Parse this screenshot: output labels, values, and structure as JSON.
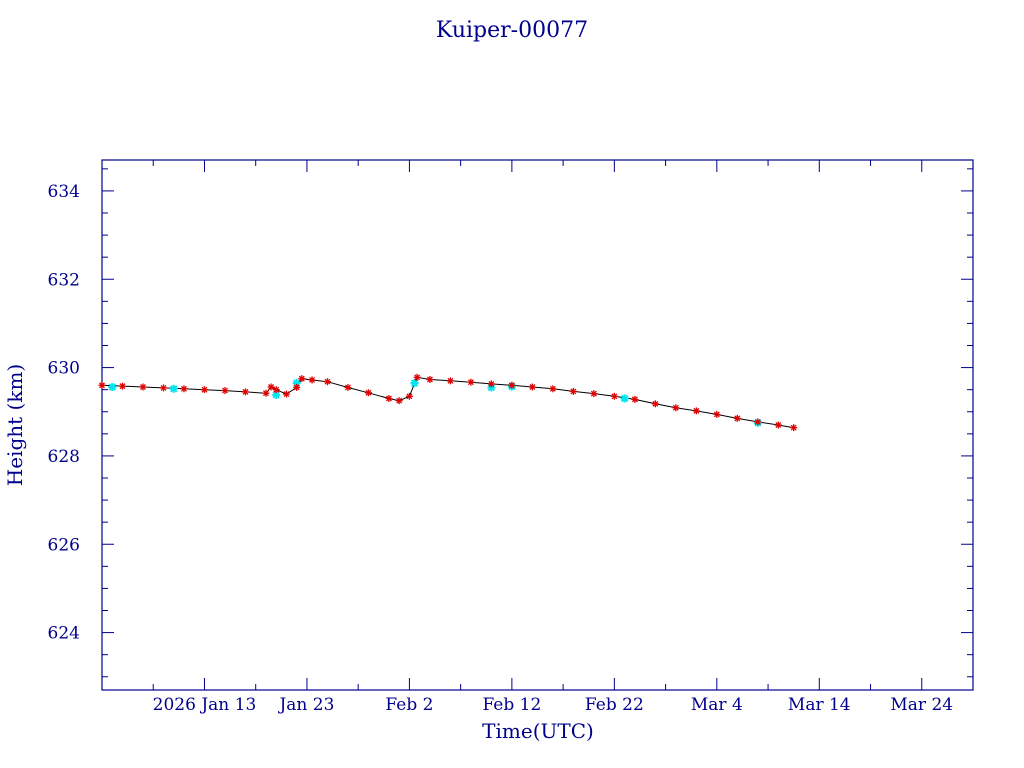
{
  "chart_data": {
    "type": "line",
    "title": "Kuiper-00077",
    "xlabel": "Time(UTC)",
    "ylabel": "Height (km)",
    "x_ticks": [
      {
        "label": "2026 Jan 13",
        "date": "2026-01-13"
      },
      {
        "label": "Jan 23",
        "date": "2026-01-23"
      },
      {
        "label": "Feb  2",
        "date": "2026-02-02"
      },
      {
        "label": "Feb 12",
        "date": "2026-02-12"
      },
      {
        "label": "Feb 22",
        "date": "2026-02-22"
      },
      {
        "label": "Mar  4",
        "date": "2026-03-04"
      },
      {
        "label": "Mar 14",
        "date": "2026-03-14"
      },
      {
        "label": "Mar 24",
        "date": "2026-03-24"
      }
    ],
    "y_ticks": [
      624,
      626,
      628,
      630,
      632,
      634
    ],
    "xlim": [
      "2026-01-03T00:00",
      "2026-03-29T00:00"
    ],
    "ylim": [
      622.7,
      634.7
    ],
    "grid": false,
    "colors": {
      "axis": "#00008b",
      "text": "#00008b",
      "line": "#000000",
      "marker_primary": "#e00000",
      "marker_secondary": "#00e5ee"
    },
    "series": [
      {
        "marker": "star",
        "points": [
          [
            "2026-01-03T00:00",
            629.6
          ],
          [
            "2026-01-05T00:00",
            629.58
          ],
          [
            "2026-01-07T00:00",
            629.56
          ],
          [
            "2026-01-09T00:00",
            629.54
          ],
          [
            "2026-01-11T00:00",
            629.52
          ],
          [
            "2026-01-13T00:00",
            629.5
          ],
          [
            "2026-01-15T00:00",
            629.48
          ],
          [
            "2026-01-17T00:00",
            629.45
          ],
          [
            "2026-01-19T00:00",
            629.42
          ],
          [
            "2026-01-19T12:00",
            629.56
          ],
          [
            "2026-01-20T00:00",
            629.5
          ],
          [
            "2026-01-21T00:00",
            629.4
          ],
          [
            "2026-01-22T00:00",
            629.55
          ],
          [
            "2026-01-22T12:00",
            629.75
          ],
          [
            "2026-01-23T12:00",
            629.72
          ],
          [
            "2026-01-25T00:00",
            629.68
          ],
          [
            "2026-01-27T00:00",
            629.55
          ],
          [
            "2026-01-29T00:00",
            629.43
          ],
          [
            "2026-01-31T00:00",
            629.3
          ],
          [
            "2026-02-01T00:00",
            629.25
          ],
          [
            "2026-02-02T00:00",
            629.35
          ],
          [
            "2026-02-02T18:00",
            629.78
          ],
          [
            "2026-02-04T00:00",
            629.73
          ],
          [
            "2026-02-06T00:00",
            629.7
          ],
          [
            "2026-02-08T00:00",
            629.67
          ],
          [
            "2026-02-10T00:00",
            629.63
          ],
          [
            "2026-02-12T00:00",
            629.6
          ],
          [
            "2026-02-14T00:00",
            629.56
          ],
          [
            "2026-02-16T00:00",
            629.52
          ],
          [
            "2026-02-18T00:00",
            629.46
          ],
          [
            "2026-02-20T00:00",
            629.41
          ],
          [
            "2026-02-22T00:00",
            629.35
          ],
          [
            "2026-02-24T00:00",
            629.28
          ],
          [
            "2026-02-26T00:00",
            629.18
          ],
          [
            "2026-02-28T00:00",
            629.09
          ],
          [
            "2026-03-02T00:00",
            629.02
          ],
          [
            "2026-03-04T00:00",
            628.94
          ],
          [
            "2026-03-06T00:00",
            628.85
          ],
          [
            "2026-03-08T00:00",
            628.77
          ],
          [
            "2026-03-10T00:00",
            628.7
          ],
          [
            "2026-03-11T12:00",
            628.64
          ]
        ]
      },
      {
        "marker": "cross",
        "points": [
          [
            "2026-01-04T00:00",
            629.56
          ],
          [
            "2026-01-10T00:00",
            629.52
          ],
          [
            "2026-01-20T00:00",
            629.38
          ],
          [
            "2026-01-22T00:00",
            629.65
          ],
          [
            "2026-02-02T12:00",
            629.65
          ],
          [
            "2026-02-10T00:00",
            629.55
          ],
          [
            "2026-02-12T00:00",
            629.57
          ],
          [
            "2026-02-23T00:00",
            629.3
          ],
          [
            "2026-03-08T00:00",
            628.75
          ]
        ]
      }
    ]
  }
}
